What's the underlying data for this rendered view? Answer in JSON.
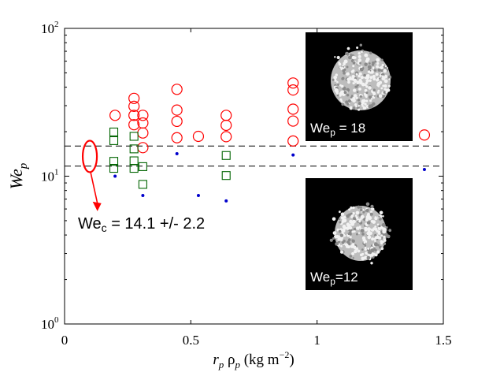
{
  "chart_data": {
    "type": "scatter",
    "title": "",
    "xlabel": "r_p ρ_p (kg m^-2)",
    "ylabel": "We_p",
    "xlim": [
      0,
      1.5
    ],
    "ylim": [
      1,
      100
    ],
    "yscale": "log",
    "x_ticks": [
      0,
      0.5,
      1,
      1.5
    ],
    "x_tick_labels": [
      "0",
      "0.5",
      "1",
      "1.5"
    ],
    "y_ticks": [
      1,
      10,
      100
    ],
    "y_tick_labels": [
      {
        "base": "10",
        "exp": "0"
      },
      {
        "base": "10",
        "exp": "1"
      },
      {
        "base": "10",
        "exp": "2"
      }
    ],
    "series": [
      {
        "name": "circles",
        "marker": "open-circle",
        "color": "#ff0000",
        "points": [
          {
            "x": 0.2,
            "y": 25.8
          },
          {
            "x": 0.275,
            "y": 33.6
          },
          {
            "x": 0.275,
            "y": 29.7
          },
          {
            "x": 0.275,
            "y": 25.8
          },
          {
            "x": 0.275,
            "y": 22.3
          },
          {
            "x": 0.31,
            "y": 25.8
          },
          {
            "x": 0.31,
            "y": 22.9
          },
          {
            "x": 0.31,
            "y": 19.6
          },
          {
            "x": 0.31,
            "y": 15.6
          },
          {
            "x": 0.445,
            "y": 38.7
          },
          {
            "x": 0.445,
            "y": 28.0
          },
          {
            "x": 0.445,
            "y": 23.5
          },
          {
            "x": 0.445,
            "y": 18.2
          },
          {
            "x": 0.53,
            "y": 18.6
          },
          {
            "x": 0.64,
            "y": 25.8
          },
          {
            "x": 0.64,
            "y": 22.1
          },
          {
            "x": 0.64,
            "y": 18.5
          },
          {
            "x": 0.905,
            "y": 42.7
          },
          {
            "x": 0.905,
            "y": 38.3
          },
          {
            "x": 0.905,
            "y": 28.4
          },
          {
            "x": 0.905,
            "y": 23.6
          },
          {
            "x": 0.905,
            "y": 17.3
          },
          {
            "x": 1.425,
            "y": 19.0
          }
        ]
      },
      {
        "name": "squares",
        "marker": "open-square",
        "color": "#006400",
        "points": [
          {
            "x": 0.195,
            "y": 19.9
          },
          {
            "x": 0.195,
            "y": 17.4
          },
          {
            "x": 0.195,
            "y": 12.6
          },
          {
            "x": 0.195,
            "y": 11.3
          },
          {
            "x": 0.275,
            "y": 18.6
          },
          {
            "x": 0.275,
            "y": 15.3
          },
          {
            "x": 0.275,
            "y": 12.7
          },
          {
            "x": 0.275,
            "y": 11.3
          },
          {
            "x": 0.31,
            "y": 11.6
          },
          {
            "x": 0.31,
            "y": 8.8
          },
          {
            "x": 0.64,
            "y": 13.8
          },
          {
            "x": 0.64,
            "y": 10.1
          }
        ]
      },
      {
        "name": "dots",
        "marker": "dot",
        "color": "#0000cc",
        "points": [
          {
            "x": 0.2,
            "y": 10.0
          },
          {
            "x": 0.31,
            "y": 7.4
          },
          {
            "x": 0.445,
            "y": 14.2
          },
          {
            "x": 0.53,
            "y": 7.4
          },
          {
            "x": 0.64,
            "y": 6.8
          },
          {
            "x": 0.905,
            "y": 13.9
          },
          {
            "x": 1.425,
            "y": 11.1
          }
        ]
      }
    ],
    "reference_lines": [
      {
        "name": "upper-bound",
        "y": 16.0,
        "style": "dashed"
      },
      {
        "name": "lower-bound",
        "y": 11.7,
        "style": "dashed"
      }
    ],
    "annotation": {
      "text_prefix": "We",
      "text_sub": "c",
      "text_rest": " = 14.1 +/- 2.2",
      "ellipse_center": {
        "x": 0.1,
        "y": 13.6
      },
      "arrow_to": {
        "x": 0.13,
        "y": 5.8
      },
      "color": "#ff0000"
    },
    "insets": [
      {
        "name": "inset-we18",
        "label_prefix": "We",
        "label_sub": "p",
        "label_rest": " = 18"
      },
      {
        "name": "inset-we12",
        "label_prefix": "We",
        "label_sub": "p",
        "label_rest": "=12"
      }
    ]
  }
}
